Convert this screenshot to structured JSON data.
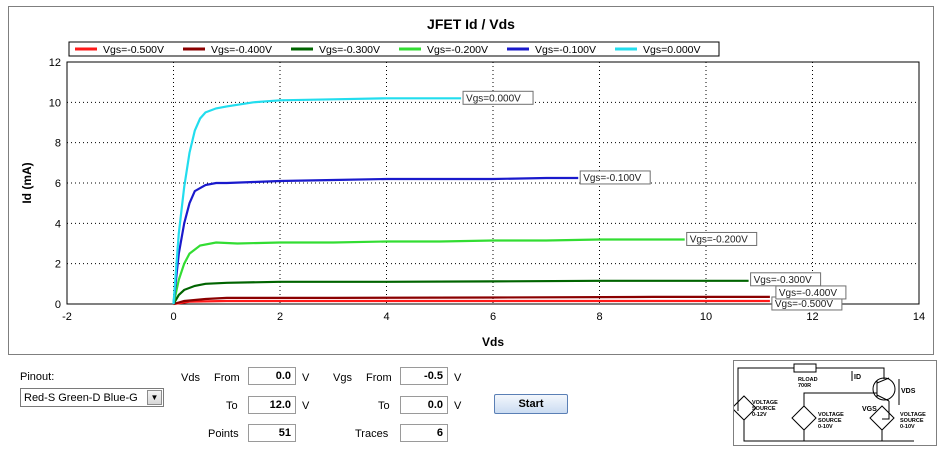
{
  "chart_data": {
    "type": "line",
    "title": "JFET Id / Vds",
    "xlabel": "Vds",
    "ylabel": "Id (mA)",
    "xlim": [
      -2,
      14
    ],
    "ylim": [
      0,
      12
    ],
    "xticks": [
      "-2",
      "0",
      "2",
      "4",
      "6",
      "8",
      "10",
      "12",
      "14"
    ],
    "yticks": [
      "0",
      "2",
      "4",
      "6",
      "8",
      "10",
      "12"
    ],
    "grid": true,
    "legend_position": "top",
    "series": [
      {
        "name": "Vgs=-0.500V",
        "color": "#ff1a1a",
        "end_label": "Vgs=-0.500V",
        "points": [
          [
            0,
            0
          ],
          [
            0.3,
            0.12
          ],
          [
            1,
            0.15
          ],
          [
            3,
            0.15
          ],
          [
            6,
            0.15
          ],
          [
            9,
            0.15
          ],
          [
            11.2,
            0.15
          ]
        ]
      },
      {
        "name": "Vgs=-0.400V",
        "color": "#8b0000",
        "end_label": "Vgs=-0.400V",
        "points": [
          [
            0,
            0
          ],
          [
            0.2,
            0.15
          ],
          [
            0.6,
            0.25
          ],
          [
            1,
            0.3
          ],
          [
            3,
            0.3
          ],
          [
            6,
            0.32
          ],
          [
            9,
            0.35
          ],
          [
            11.2,
            0.35
          ]
        ]
      },
      {
        "name": "Vgs=-0.300V",
        "color": "#006400",
        "end_label": "Vgs=-0.300V",
        "points": [
          [
            0,
            0
          ],
          [
            0.1,
            0.45
          ],
          [
            0.2,
            0.7
          ],
          [
            0.4,
            0.9
          ],
          [
            0.6,
            1.0
          ],
          [
            1,
            1.05
          ],
          [
            2,
            1.1
          ],
          [
            4,
            1.1
          ],
          [
            6,
            1.12
          ],
          [
            8,
            1.15
          ],
          [
            10,
            1.15
          ],
          [
            10.8,
            1.15
          ]
        ]
      },
      {
        "name": "Vgs=-0.200V",
        "color": "#33dd33",
        "end_label": "Vgs=-0.200V",
        "points": [
          [
            0,
            0
          ],
          [
            0.1,
            1.2
          ],
          [
            0.2,
            2.0
          ],
          [
            0.3,
            2.5
          ],
          [
            0.5,
            2.9
          ],
          [
            0.8,
            3.05
          ],
          [
            1.2,
            3.0
          ],
          [
            2,
            3.05
          ],
          [
            3,
            3.05
          ],
          [
            4,
            3.1
          ],
          [
            5,
            3.1
          ],
          [
            6,
            3.15
          ],
          [
            7,
            3.15
          ],
          [
            8,
            3.2
          ],
          [
            9,
            3.2
          ],
          [
            9.6,
            3.2
          ]
        ]
      },
      {
        "name": "Vgs=-0.100V",
        "color": "#1a1acc",
        "end_label": "Vgs=-0.100V",
        "points": [
          [
            0,
            0
          ],
          [
            0.05,
            1.3
          ],
          [
            0.1,
            2.5
          ],
          [
            0.2,
            4.0
          ],
          [
            0.3,
            5.0
          ],
          [
            0.4,
            5.6
          ],
          [
            0.6,
            5.9
          ],
          [
            0.8,
            6.0
          ],
          [
            1,
            6.0
          ],
          [
            1.5,
            6.05
          ],
          [
            2,
            6.1
          ],
          [
            3,
            6.15
          ],
          [
            4,
            6.2
          ],
          [
            5,
            6.2
          ],
          [
            6,
            6.2
          ],
          [
            7,
            6.25
          ],
          [
            7.6,
            6.25
          ]
        ]
      },
      {
        "name": "Vgs=0.000V",
        "color": "#22ddee",
        "end_label": "Vgs=0.000V",
        "points": [
          [
            0,
            0
          ],
          [
            0.05,
            1.8
          ],
          [
            0.1,
            3.5
          ],
          [
            0.2,
            5.8
          ],
          [
            0.3,
            7.5
          ],
          [
            0.4,
            8.6
          ],
          [
            0.5,
            9.2
          ],
          [
            0.6,
            9.5
          ],
          [
            0.8,
            9.7
          ],
          [
            1,
            9.8
          ],
          [
            1.5,
            10.0
          ],
          [
            2,
            10.1
          ],
          [
            3,
            10.15
          ],
          [
            4,
            10.2
          ],
          [
            5,
            10.2
          ],
          [
            5.4,
            10.2
          ]
        ]
      }
    ]
  },
  "controls": {
    "pinout_label": "Pinout:",
    "pinout_value": "Red-S Green-D Blue-G",
    "vds_label": "Vds",
    "vgs_label": "Vgs",
    "from_label": "From",
    "to_label": "To",
    "points_label": "Points",
    "traces_label": "Traces",
    "unit_v": "V",
    "vds_from": "0.0",
    "vds_to": "12.0",
    "points": "51",
    "vgs_from": "-0.5",
    "vgs_to": "0.0",
    "traces": "6",
    "start_label": "Start"
  },
  "schematic": {
    "source1_label": "VOLTAGE SOURCE 0-12V",
    "rload_label": "RLOAD 700R",
    "source2_label": "VOLTAGE SOURCE 0-10V",
    "source3_label": "VOLTAGE SOURCE 0-10V",
    "id_label": "ID",
    "vds_label": "VDS",
    "vgs_label": "VGS"
  }
}
